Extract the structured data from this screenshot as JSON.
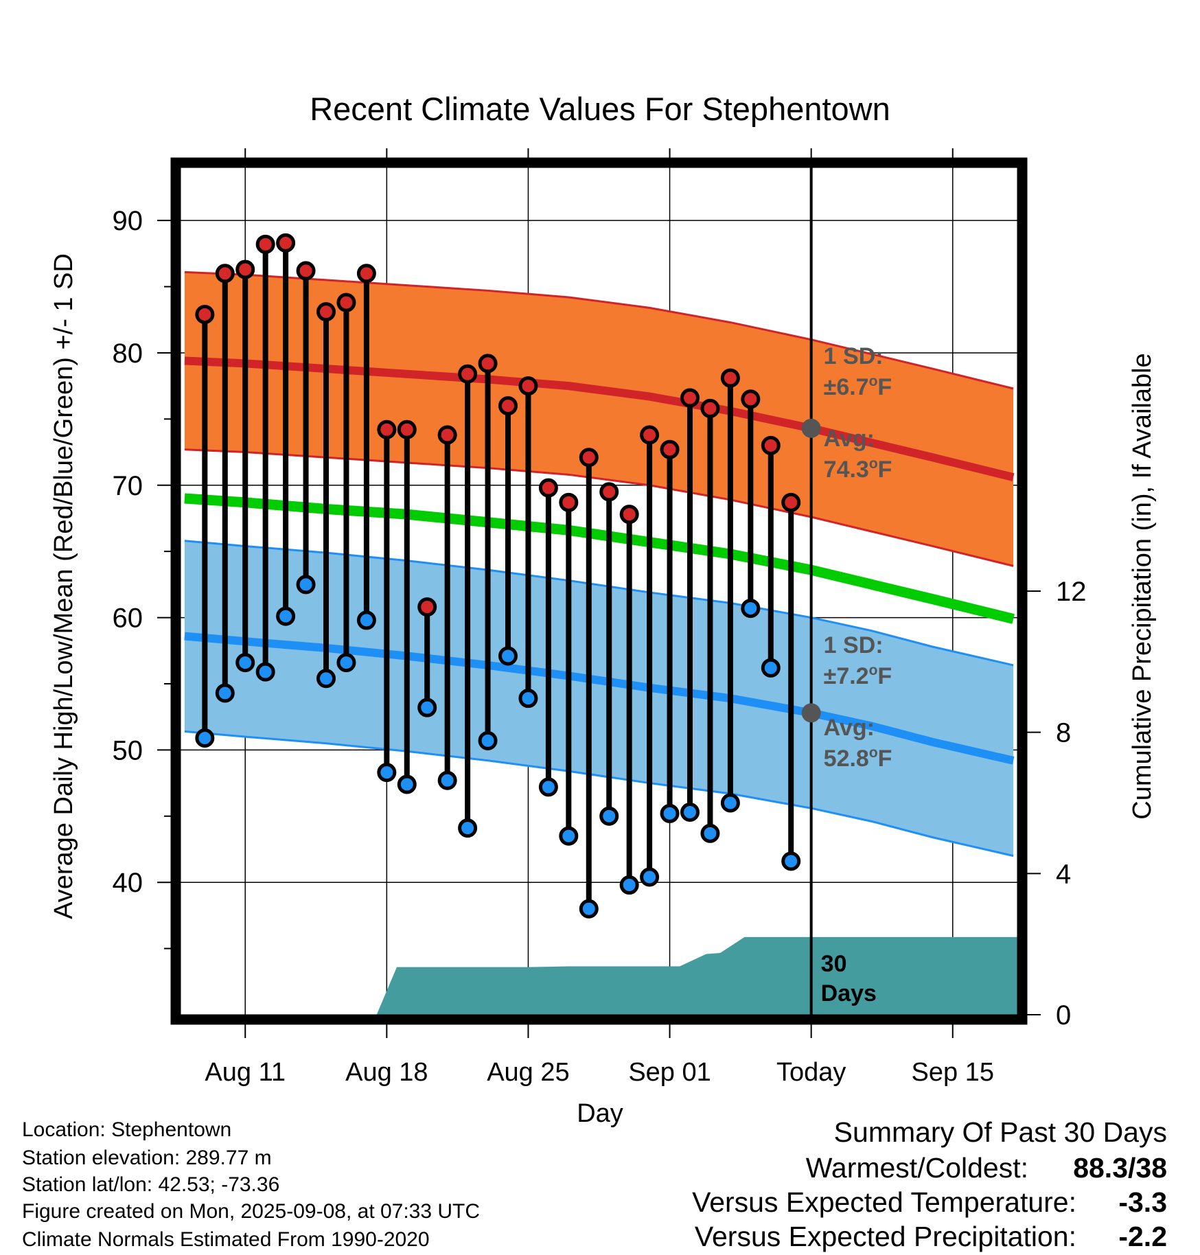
{
  "chart_data": {
    "type": "line",
    "title": "Recent Climate Values For Stephentown",
    "xlabel": "Day",
    "ylabel": "Average Daily High/Low/Mean (Red/Blue/Green) +/- 1 SD",
    "y2label": "Cumulative Precipitation (in), If Available",
    "ylim": [
      30,
      94
    ],
    "y2lim": [
      0,
      24
    ],
    "xlim_days": [
      -31.2,
      10.2
    ],
    "x_ticks": [
      {
        "day": -28,
        "label": "Aug 11"
      },
      {
        "day": -21,
        "label": "Aug 18"
      },
      {
        "day": -14,
        "label": "Aug 25"
      },
      {
        "day": -7,
        "label": "Sep 01"
      },
      {
        "day": 0,
        "label": "Today"
      },
      {
        "day": 7,
        "label": "Sep 15"
      }
    ],
    "y_ticks": [
      40,
      50,
      60,
      70,
      80,
      90
    ],
    "y2_ticks": [
      0,
      4,
      8,
      12
    ],
    "days": [
      -30,
      -29,
      -28,
      -27,
      -26,
      -25,
      -24,
      -23,
      -22,
      -21,
      -20,
      -19,
      -18,
      -17,
      -16,
      -15,
      -14,
      -13,
      -12,
      -11,
      -10,
      -9,
      -8,
      -7,
      -6,
      -5,
      -4,
      -3,
      -2,
      -1
    ],
    "daily_high": [
      82.9,
      86.0,
      86.3,
      88.2,
      88.3,
      86.2,
      83.1,
      83.8,
      86.0,
      74.2,
      74.2,
      60.8,
      73.8,
      78.4,
      79.2,
      76.0,
      77.5,
      69.8,
      68.7,
      72.1,
      69.5,
      67.8,
      73.8,
      72.7,
      76.6,
      75.8,
      78.1,
      76.5,
      73.0,
      68.7
    ],
    "daily_low": [
      50.9,
      54.3,
      56.6,
      55.9,
      60.1,
      62.5,
      55.4,
      56.6,
      59.8,
      48.3,
      47.4,
      53.2,
      47.7,
      44.1,
      50.7,
      57.1,
      53.9,
      47.2,
      43.5,
      38.0,
      45.0,
      39.8,
      40.4,
      45.2,
      45.3,
      43.7,
      46.0,
      60.7,
      56.2,
      41.6
    ],
    "normal_high": {
      "days": [
        -31,
        -28,
        -24,
        -20,
        -16,
        -12,
        -8,
        -4,
        0,
        3,
        6,
        10
      ],
      "avg": [
        79.4,
        79.2,
        78.8,
        78.4,
        78.0,
        77.5,
        76.7,
        75.6,
        74.3,
        73.2,
        72.1,
        70.6
      ],
      "sd": 6.7
    },
    "normal_low": {
      "days": [
        -31,
        -28,
        -24,
        -20,
        -16,
        -12,
        -8,
        -4,
        0,
        3,
        6,
        10
      ],
      "avg": [
        58.6,
        58.2,
        57.7,
        57.1,
        56.4,
        55.6,
        54.7,
        53.9,
        52.8,
        51.8,
        50.6,
        49.2
      ],
      "sd": 7.2
    },
    "normal_mean": {
      "days": [
        -31,
        -28,
        -24,
        -20,
        -16,
        -12,
        -8,
        -4,
        0,
        3,
        6,
        10
      ],
      "avg": [
        69.0,
        68.7,
        68.2,
        67.8,
        67.2,
        66.6,
        65.7,
        64.8,
        63.6,
        62.5,
        61.4,
        59.9
      ]
    },
    "precip_days": [
      -31,
      -21.5,
      -20.5,
      -14,
      -13,
      -12,
      -6.5,
      -5.2,
      -4.5,
      -3.3,
      -2.8,
      0,
      10.2
    ],
    "precip_cumulative": [
      0,
      0,
      1.35,
      1.35,
      1.36,
      1.37,
      1.37,
      1.72,
      1.75,
      2.2,
      2.2,
      2.2,
      2.2
    ],
    "annotations": {
      "high_sd": "1 SD:",
      "high_sd_val": "±6.7",
      "high_avg": "Avg:",
      "high_avg_val": "74.3",
      "low_sd": "1 SD:",
      "low_sd_val": "±7.2",
      "low_avg": "Avg:",
      "low_avg_val": "52.8",
      "deg_sup": "o",
      "unit": "F",
      "days_num": "30",
      "days_word": "Days"
    },
    "colors": {
      "high_band": "#f47a30",
      "high_line": "#d02428",
      "low_band": "#82c0e6",
      "low_line": "#1e8ff5",
      "mean_line": "#00cc00",
      "precip": "#459c9e",
      "annotation": "#555555",
      "high_dot": "#d62828",
      "low_dot": "#1e8ff5"
    }
  },
  "info": {
    "location": "Location: Stephentown",
    "elevation": "Station elevation: 289.77 m",
    "latlon": "Station lat/lon: 42.53; -73.36",
    "created": "Figure created on Mon, 2025-09-08, at 07:33 UTC",
    "normals": "Climate Normals Estimated From 1990-2020"
  },
  "summary": {
    "title": "Summary Of Past 30 Days",
    "warm_cold_label": "Warmest/Coldest:",
    "warm_cold_value": "88.3/38",
    "temp_label": "Versus Expected Temperature:",
    "temp_value": "-3.3",
    "temp_color": "#1e8ff5",
    "precip_label": "Versus Expected Precipitation:",
    "precip_value": "-2.2",
    "precip_color": "#a0522d"
  }
}
